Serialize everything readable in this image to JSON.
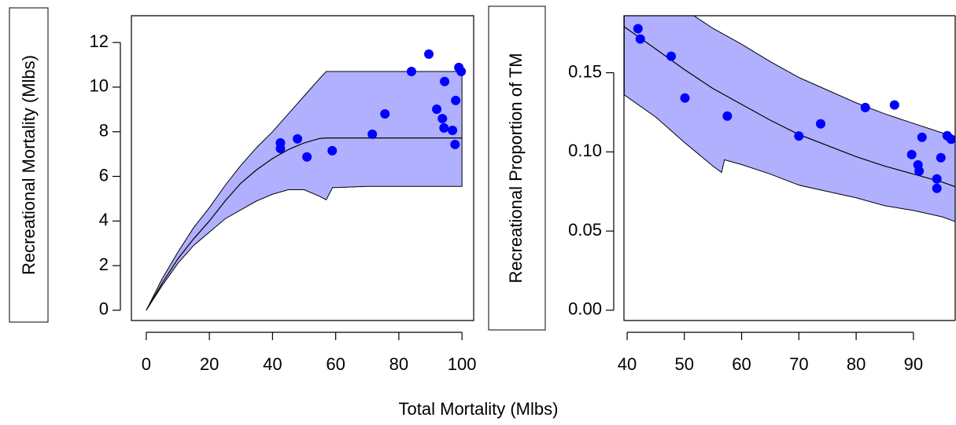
{
  "xlabel": "Total Mortality (Mlbs)",
  "chart_data": [
    {
      "type": "scatter",
      "ylabel": "Recreational Mortality (Mlbs)",
      "xlim": [
        -4.7,
        103.7
      ],
      "ylim": [
        -0.46,
        13.2
      ],
      "xticks": [
        0,
        20,
        40,
        60,
        80,
        100
      ],
      "yticks": [
        0,
        2,
        4,
        6,
        8,
        10,
        12
      ],
      "fit": {
        "color": "#b0b0ff",
        "line_color": "#000000",
        "x": [
          0,
          5,
          10,
          15,
          20,
          25,
          30,
          35,
          40,
          45,
          50,
          55,
          57,
          59,
          60,
          70,
          80,
          90,
          100
        ],
        "upper": [
          0,
          1.4,
          2.6,
          3.7,
          4.6,
          5.6,
          6.5,
          7.3,
          8.0,
          8.8,
          9.6,
          10.4,
          10.7,
          10.7,
          10.7,
          10.7,
          10.7,
          10.7,
          10.7
        ],
        "lower": [
          0,
          1.1,
          2.1,
          2.9,
          3.5,
          4.1,
          4.5,
          4.9,
          5.2,
          5.4,
          5.4,
          5.1,
          4.95,
          5.5,
          5.5,
          5.55,
          5.55,
          5.55,
          5.55
        ],
        "center": [
          0,
          1.2,
          2.3,
          3.2,
          4.0,
          4.9,
          5.7,
          6.3,
          6.8,
          7.2,
          7.5,
          7.7,
          7.72,
          7.72,
          7.72,
          7.72,
          7.72,
          7.72,
          7.72
        ]
      },
      "points": {
        "color": "#0000ff",
        "x": [
          42.5,
          42.5,
          47.9,
          50.9,
          58.9,
          71.6,
          75.6,
          84.0,
          89.5,
          92.0,
          93.8,
          94.5,
          94.3,
          97.0,
          97.8,
          98.0,
          99.0,
          99.75
        ],
        "y": [
          7.5,
          7.25,
          7.68,
          6.87,
          7.15,
          7.89,
          8.8,
          10.7,
          11.48,
          9.01,
          8.59,
          10.25,
          8.17,
          8.06,
          7.43,
          9.4,
          10.88,
          10.7
        ]
      }
    },
    {
      "type": "scatter",
      "ylabel": "Recreational Proportion of TM",
      "xlim": [
        39.45,
        97.3
      ],
      "ylim": [
        -0.0065,
        0.186
      ],
      "xticks": [
        40,
        50,
        60,
        70,
        80,
        90
      ],
      "yticks": [
        {
          "value": 0,
          "label": "0.00"
        },
        0.05,
        {
          "value": 0.1,
          "label": "0.10"
        },
        0.15
      ],
      "fit": {
        "color": "#b0b0ff",
        "line_color": "#000000",
        "x": [
          39.5,
          45,
          50,
          55,
          56.5,
          57,
          60,
          65,
          70,
          75,
          80,
          85,
          90,
          95,
          97.3
        ],
        "upper": [
          0.21,
          0.2,
          0.19,
          0.178,
          0.175,
          0.174,
          0.168,
          0.157,
          0.147,
          0.139,
          0.131,
          0.124,
          0.118,
          0.112,
          0.109
        ],
        "lower": [
          0.136,
          0.122,
          0.106,
          0.091,
          0.087,
          0.095,
          0.092,
          0.086,
          0.079,
          0.075,
          0.071,
          0.066,
          0.063,
          0.059,
          0.056
        ],
        "center": [
          0.179,
          0.165,
          0.152,
          0.14,
          0.137,
          0.136,
          0.13,
          0.12,
          0.111,
          0.104,
          0.097,
          0.091,
          0.086,
          0.081,
          0.078
        ]
      },
      "points": {
        "color": "#0000ff",
        "x": [
          41.9,
          42.3,
          47.7,
          50.1,
          57.5,
          70.0,
          73.8,
          81.6,
          86.7,
          89.7,
          91.5,
          90.8,
          91.0,
          94.1,
          94.1,
          94.8,
          95.9,
          96.6
        ],
        "y": [
          0.1778,
          0.1713,
          0.1604,
          0.134,
          0.1226,
          0.11,
          0.1177,
          0.128,
          0.1296,
          0.0983,
          0.1092,
          0.0918,
          0.0879,
          0.0829,
          0.077,
          0.0963,
          0.1102,
          0.108
        ]
      }
    }
  ]
}
